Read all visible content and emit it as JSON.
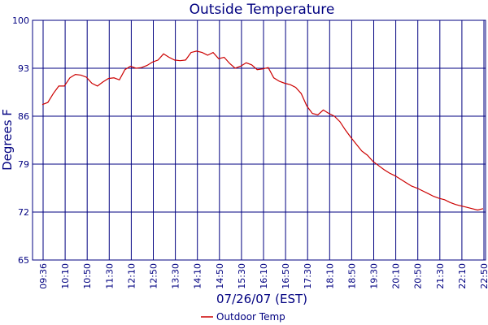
{
  "chart_data": {
    "type": "line",
    "title": "Outside Temperature",
    "xlabel": "07/26/07 (EST)",
    "ylabel": "Degrees F",
    "ylim": [
      65,
      100
    ],
    "yticks": [
      "65",
      "72",
      "79",
      "86",
      "93",
      "100"
    ],
    "xticks": [
      "09:36",
      "10:10",
      "10:50",
      "11:30",
      "12:10",
      "12:50",
      "13:30",
      "14:10",
      "14:50",
      "15:30",
      "16:10",
      "16:50",
      "17:30",
      "18:10",
      "18:50",
      "19:30",
      "20:10",
      "20:50",
      "21:30",
      "22:10",
      "22:50"
    ],
    "grid": true,
    "legend_position": "bottom-center",
    "line_color": "#cc0000",
    "axis_color": "#000080",
    "series": [
      {
        "name": "Outdoor Temp",
        "values": [
          87.7,
          88.0,
          89.3,
          90.4,
          90.4,
          91.6,
          92.1,
          92.0,
          91.7,
          90.8,
          90.4,
          91.0,
          91.5,
          91.6,
          91.3,
          92.8,
          93.3,
          93.0,
          93.1,
          93.4,
          93.9,
          94.2,
          95.1,
          94.6,
          94.2,
          94.1,
          94.2,
          95.3,
          95.5,
          95.3,
          94.9,
          95.3,
          94.4,
          94.6,
          93.7,
          93.0,
          93.3,
          93.8,
          93.5,
          92.8,
          92.9,
          93.1,
          91.6,
          91.1,
          90.8,
          90.6,
          90.2,
          89.3,
          87.5,
          86.4,
          86.2,
          86.9,
          86.4,
          86.0,
          85.2,
          84.0,
          82.9,
          81.9,
          80.9,
          80.3,
          79.4,
          78.8,
          78.2,
          77.7,
          77.3,
          76.8,
          76.3,
          75.8,
          75.5,
          75.1,
          74.7,
          74.3,
          74.0,
          73.8,
          73.4,
          73.1,
          72.9,
          72.7,
          72.5,
          72.3,
          72.5
        ]
      }
    ]
  }
}
